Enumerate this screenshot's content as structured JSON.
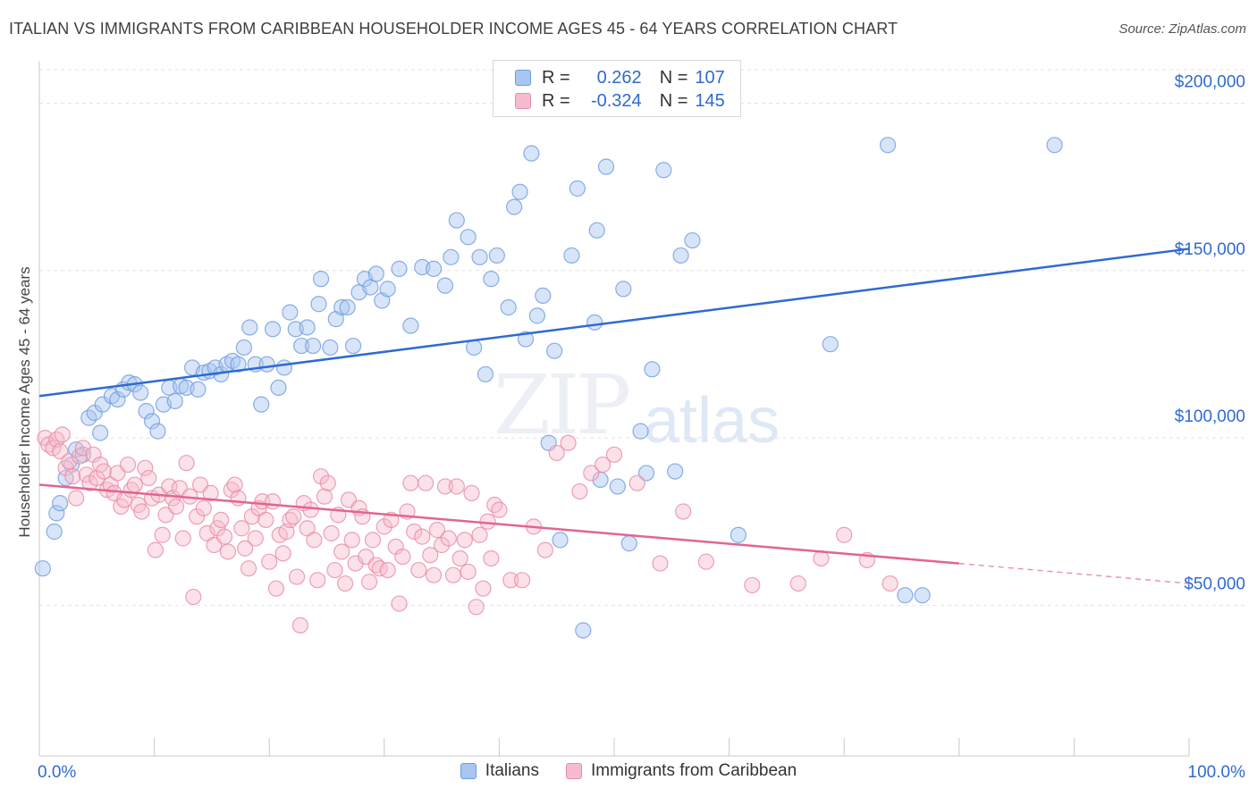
{
  "header": {
    "title": "ITALIAN VS IMMIGRANTS FROM CARIBBEAN HOUSEHOLDER INCOME AGES 45 - 64 YEARS CORRELATION CHART",
    "source": "Source: ZipAtlas.com"
  },
  "watermark": {
    "zip": "ZIP",
    "atlas": "atlas"
  },
  "stats": {
    "rows": [
      {
        "r_label": "R =",
        "r_value": "0.262",
        "n_label": "N =",
        "n_value": "107",
        "color": "#a9c6f0",
        "border": "#6d9be0"
      },
      {
        "r_label": "R =",
        "r_value": "-0.324",
        "n_label": "N =",
        "n_value": "145",
        "color": "#f6bccd",
        "border": "#e88aa8"
      }
    ]
  },
  "legend": {
    "items": [
      {
        "label": "Italians",
        "color": "#a9c6f0",
        "border": "#6d9be0"
      },
      {
        "label": "Immigrants from Caribbean",
        "color": "#f6bccd",
        "border": "#e88aa8"
      }
    ]
  },
  "chart_data": {
    "type": "scatter",
    "title": "ITALIAN VS IMMIGRANTS FROM CARIBBEAN HOUSEHOLDER INCOME AGES 45 - 64 YEARS CORRELATION CHART",
    "xlabel": "",
    "ylabel": "Householder Income Ages 45 - 64 years",
    "xlim": [
      0,
      100
    ],
    "ylim": [
      5000,
      210000
    ],
    "x_tick_labels": [
      "0.0%",
      "100.0%"
    ],
    "y_ticks": [
      50000,
      100000,
      150000,
      200000
    ],
    "y_tick_labels": [
      "$50,000",
      "$100,000",
      "$150,000",
      "$200,000"
    ],
    "grid": true,
    "legend_position": "bottom",
    "series": [
      {
        "name": "Italians",
        "color": "#6d9be0",
        "fill": "#a9c6f0",
        "trend": {
          "x": [
            0,
            100
          ],
          "y": [
            112500,
            156500
          ],
          "color": "#2f6ad1"
        },
        "points": [
          [
            0.3,
            61000
          ],
          [
            1.3,
            72000
          ],
          [
            1.5,
            77500
          ],
          [
            1.8,
            80500
          ],
          [
            2.3,
            88000
          ],
          [
            2.8,
            92000
          ],
          [
            3.2,
            96500
          ],
          [
            3.8,
            95000
          ],
          [
            4.3,
            106000
          ],
          [
            4.8,
            107500
          ],
          [
            5.3,
            101500
          ],
          [
            5.5,
            110000
          ],
          [
            6.3,
            112500
          ],
          [
            6.8,
            111500
          ],
          [
            7.3,
            114500
          ],
          [
            7.8,
            116500
          ],
          [
            8.3,
            116000
          ],
          [
            8.8,
            113500
          ],
          [
            9.3,
            108000
          ],
          [
            9.8,
            105000
          ],
          [
            10.3,
            102000
          ],
          [
            10.8,
            110000
          ],
          [
            11.3,
            115000
          ],
          [
            11.8,
            111000
          ],
          [
            12.3,
            115500
          ],
          [
            12.8,
            115000
          ],
          [
            13.3,
            121000
          ],
          [
            13.8,
            114500
          ],
          [
            14.3,
            119500
          ],
          [
            14.8,
            120000
          ],
          [
            15.3,
            121000
          ],
          [
            15.8,
            119000
          ],
          [
            16.3,
            122000
          ],
          [
            16.8,
            123000
          ],
          [
            17.3,
            122000
          ],
          [
            17.8,
            127000
          ],
          [
            18.3,
            133000
          ],
          [
            18.8,
            122000
          ],
          [
            19.3,
            110000
          ],
          [
            19.8,
            122000
          ],
          [
            20.3,
            132500
          ],
          [
            20.8,
            115000
          ],
          [
            21.3,
            121000
          ],
          [
            21.8,
            137500
          ],
          [
            22.3,
            132500
          ],
          [
            22.8,
            127500
          ],
          [
            23.3,
            133000
          ],
          [
            23.8,
            127500
          ],
          [
            24.3,
            140000
          ],
          [
            24.5,
            147500
          ],
          [
            25.3,
            127000
          ],
          [
            25.8,
            135500
          ],
          [
            26.3,
            139000
          ],
          [
            26.8,
            139000
          ],
          [
            27.3,
            127500
          ],
          [
            27.8,
            143500
          ],
          [
            28.3,
            147500
          ],
          [
            28.8,
            145000
          ],
          [
            29.3,
            149000
          ],
          [
            29.8,
            141000
          ],
          [
            30.3,
            144500
          ],
          [
            31.3,
            150500
          ],
          [
            32.3,
            133500
          ],
          [
            33.3,
            151000
          ],
          [
            34.3,
            150500
          ],
          [
            35.3,
            145500
          ],
          [
            35.8,
            154000
          ],
          [
            36.3,
            165000
          ],
          [
            37.3,
            160000
          ],
          [
            37.8,
            127000
          ],
          [
            38.3,
            154000
          ],
          [
            38.8,
            119000
          ],
          [
            39.3,
            147500
          ],
          [
            39.8,
            154500
          ],
          [
            40.8,
            139000
          ],
          [
            41.3,
            169000
          ],
          [
            41.8,
            173500
          ],
          [
            42.3,
            129500
          ],
          [
            42.8,
            185000
          ],
          [
            43.3,
            136500
          ],
          [
            43.8,
            142500
          ],
          [
            44.3,
            98500
          ],
          [
            44.8,
            126000
          ],
          [
            45.3,
            69500
          ],
          [
            46.3,
            154500
          ],
          [
            46.8,
            174500
          ],
          [
            47.3,
            42500
          ],
          [
            48.3,
            134500
          ],
          [
            48.5,
            162000
          ],
          [
            48.8,
            87500
          ],
          [
            49.3,
            181000
          ],
          [
            50.3,
            85500
          ],
          [
            50.8,
            144500
          ],
          [
            51.3,
            68500
          ],
          [
            52.3,
            102000
          ],
          [
            52.8,
            89500
          ],
          [
            53.3,
            120500
          ],
          [
            54.3,
            180000
          ],
          [
            55.3,
            90000
          ],
          [
            55.8,
            154500
          ],
          [
            56.8,
            159000
          ],
          [
            60.8,
            71000
          ],
          [
            68.8,
            128000
          ],
          [
            73.8,
            187500
          ],
          [
            75.3,
            53000
          ],
          [
            76.8,
            53000
          ],
          [
            88.3,
            187500
          ]
        ]
      },
      {
        "name": "Immigrants from Caribbean",
        "color": "#e88aa8",
        "fill": "#f6bccd",
        "trend": {
          "x": [
            0,
            80
          ],
          "y": [
            86000,
            62500
          ],
          "color": "#e26590"
        },
        "trend_dashed": {
          "x": [
            80,
            100
          ],
          "y": [
            62500,
            56500
          ]
        },
        "points": [
          [
            0.5,
            100000
          ],
          [
            0.8,
            98000
          ],
          [
            1.2,
            97000
          ],
          [
            1.5,
            99500
          ],
          [
            1.8,
            96000
          ],
          [
            2.0,
            101000
          ],
          [
            2.3,
            91000
          ],
          [
            2.6,
            93000
          ],
          [
            2.9,
            88500
          ],
          [
            3.2,
            82000
          ],
          [
            3.5,
            94500
          ],
          [
            3.8,
            97000
          ],
          [
            4.1,
            89000
          ],
          [
            4.4,
            86500
          ],
          [
            4.7,
            95000
          ],
          [
            5.0,
            88000
          ],
          [
            5.3,
            92000
          ],
          [
            5.6,
            90000
          ],
          [
            5.9,
            84500
          ],
          [
            6.2,
            86000
          ],
          [
            6.5,
            83500
          ],
          [
            6.8,
            89500
          ],
          [
            7.1,
            79500
          ],
          [
            7.4,
            81500
          ],
          [
            7.7,
            92000
          ],
          [
            8.0,
            84500
          ],
          [
            8.3,
            86000
          ],
          [
            8.6,
            80000
          ],
          [
            8.9,
            78000
          ],
          [
            9.2,
            91000
          ],
          [
            9.5,
            88000
          ],
          [
            9.8,
            82000
          ],
          [
            10.1,
            66500
          ],
          [
            10.4,
            83000
          ],
          [
            10.7,
            71000
          ],
          [
            11.0,
            77000
          ],
          [
            11.3,
            85500
          ],
          [
            11.6,
            82000
          ],
          [
            11.9,
            79500
          ],
          [
            12.2,
            85000
          ],
          [
            12.5,
            70000
          ],
          [
            12.8,
            92500
          ],
          [
            13.1,
            82500
          ],
          [
            13.4,
            52500
          ],
          [
            13.7,
            76500
          ],
          [
            14.0,
            86000
          ],
          [
            14.3,
            79000
          ],
          [
            14.6,
            71500
          ],
          [
            14.9,
            83500
          ],
          [
            15.2,
            68000
          ],
          [
            15.5,
            73000
          ],
          [
            15.8,
            75500
          ],
          [
            16.1,
            70500
          ],
          [
            16.4,
            66000
          ],
          [
            16.7,
            84500
          ],
          [
            17.0,
            86000
          ],
          [
            17.3,
            82000
          ],
          [
            17.6,
            73000
          ],
          [
            17.9,
            67000
          ],
          [
            18.2,
            61000
          ],
          [
            18.5,
            76500
          ],
          [
            18.8,
            70000
          ],
          [
            19.1,
            79000
          ],
          [
            19.4,
            81000
          ],
          [
            19.7,
            75500
          ],
          [
            20.0,
            63000
          ],
          [
            20.3,
            81000
          ],
          [
            20.6,
            55000
          ],
          [
            20.9,
            71000
          ],
          [
            21.2,
            65500
          ],
          [
            21.5,
            72000
          ],
          [
            21.8,
            75500
          ],
          [
            22.1,
            76500
          ],
          [
            22.4,
            58500
          ],
          [
            22.7,
            44000
          ],
          [
            23.0,
            80500
          ],
          [
            23.3,
            73000
          ],
          [
            23.6,
            78500
          ],
          [
            23.9,
            69500
          ],
          [
            24.2,
            57500
          ],
          [
            24.5,
            88500
          ],
          [
            24.8,
            82500
          ],
          [
            25.1,
            86500
          ],
          [
            25.4,
            71500
          ],
          [
            25.7,
            60500
          ],
          [
            26.0,
            77000
          ],
          [
            26.3,
            66000
          ],
          [
            26.6,
            56500
          ],
          [
            26.9,
            81500
          ],
          [
            27.2,
            69500
          ],
          [
            27.5,
            62500
          ],
          [
            27.8,
            79000
          ],
          [
            28.1,
            76500
          ],
          [
            28.4,
            64500
          ],
          [
            28.7,
            57000
          ],
          [
            29.0,
            69500
          ],
          [
            29.3,
            62000
          ],
          [
            29.6,
            61000
          ],
          [
            30.0,
            73500
          ],
          [
            30.3,
            60500
          ],
          [
            30.6,
            75500
          ],
          [
            31.0,
            67500
          ],
          [
            31.3,
            50500
          ],
          [
            31.6,
            64500
          ],
          [
            32.0,
            78000
          ],
          [
            32.3,
            86500
          ],
          [
            32.6,
            72000
          ],
          [
            33.0,
            60500
          ],
          [
            33.3,
            70500
          ],
          [
            33.6,
            86500
          ],
          [
            34.0,
            65000
          ],
          [
            34.3,
            59000
          ],
          [
            34.6,
            72500
          ],
          [
            35.0,
            68000
          ],
          [
            35.3,
            85500
          ],
          [
            35.6,
            70000
          ],
          [
            36.0,
            59000
          ],
          [
            36.3,
            85500
          ],
          [
            36.6,
            64000
          ],
          [
            37.0,
            69500
          ],
          [
            37.3,
            60000
          ],
          [
            37.6,
            83500
          ],
          [
            38.0,
            49500
          ],
          [
            38.3,
            71000
          ],
          [
            38.6,
            55000
          ],
          [
            39.0,
            75000
          ],
          [
            39.3,
            64000
          ],
          [
            39.6,
            80000
          ],
          [
            40.0,
            78500
          ],
          [
            41.0,
            57500
          ],
          [
            42.0,
            57500
          ],
          [
            43.0,
            73500
          ],
          [
            44.0,
            66500
          ],
          [
            45.0,
            95500
          ],
          [
            46.0,
            98500
          ],
          [
            47.0,
            84000
          ],
          [
            48.0,
            89500
          ],
          [
            49.0,
            92000
          ],
          [
            50.0,
            95000
          ],
          [
            52.0,
            86500
          ],
          [
            54.0,
            62500
          ],
          [
            56.0,
            78000
          ],
          [
            58.0,
            63000
          ],
          [
            62.0,
            56000
          ],
          [
            66.0,
            56500
          ],
          [
            68.0,
            64000
          ],
          [
            70.0,
            71000
          ],
          [
            72.0,
            63500
          ],
          [
            74.0,
            56500
          ]
        ]
      }
    ]
  }
}
